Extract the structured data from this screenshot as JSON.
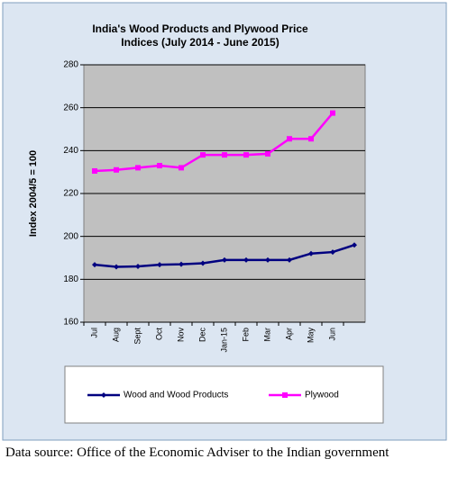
{
  "chart_data": {
    "type": "line",
    "title": "India's Wood Products and Plywood Price Indices  (July 2014 - June 2015)",
    "title_lines": [
      "India's Wood Products and Plywood Price",
      "Indices  (July 2014 - June 2015)"
    ],
    "y_label": "Index 2004/5 = 100",
    "categories": [
      "Jul",
      "Aug",
      "Sept",
      "Oct",
      "Nov",
      "Dec",
      "Jan-15",
      "Feb",
      "Mar",
      "Apr",
      "May",
      "Jun",
      null
    ],
    "series": [
      {
        "name": "Wood and Wood Products",
        "color": "#000080",
        "values": [
          186.8,
          185.8,
          186,
          186.8,
          187,
          187.5,
          189,
          189,
          189,
          189,
          192,
          192.7,
          196
        ]
      },
      {
        "name": "Plywood",
        "color": "#ff00ff",
        "values": [
          230.5,
          231,
          232,
          233,
          232,
          238,
          238,
          238,
          238.5,
          245.5,
          245.5,
          257.5,
          null
        ]
      }
    ],
    "ylim": [
      160,
      280
    ],
    "yticks": [
      160,
      180,
      200,
      220,
      240,
      260,
      280
    ],
    "grid": true
  },
  "caption": "Data source: Office of the Economic Adviser to the Indian government"
}
